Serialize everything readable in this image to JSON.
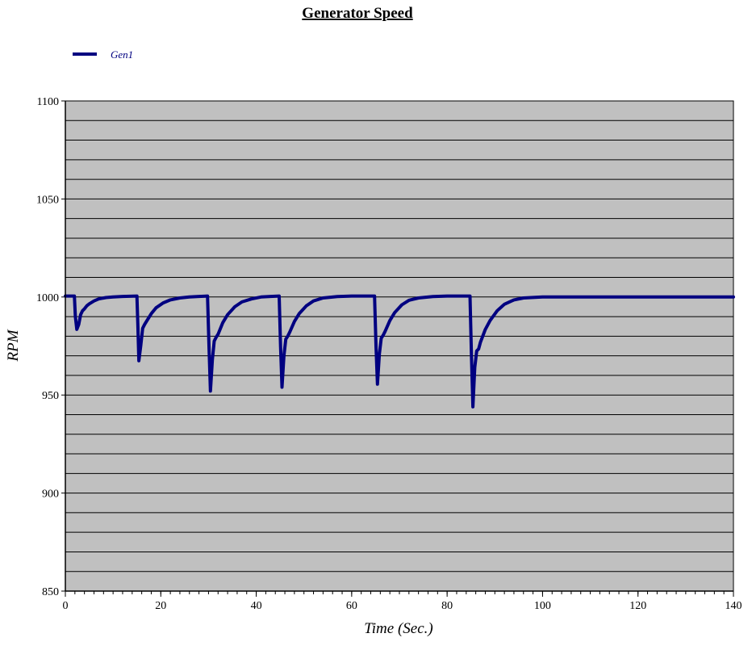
{
  "chart_data": {
    "type": "line",
    "title": "Generator Speed",
    "xlabel": "Time (Sec.)",
    "ylabel": "RPM",
    "xlim": [
      0,
      140
    ],
    "ylim": [
      850,
      1100
    ],
    "x_ticks": [
      0,
      20,
      40,
      60,
      80,
      100,
      120,
      140
    ],
    "y_ticks": [
      850,
      900,
      950,
      1000,
      1050,
      1100
    ],
    "x_minor_step": 2,
    "y_grid_step": 10,
    "grid": true,
    "plot_background": "#c0c0c0",
    "legend": {
      "position": "top-left"
    },
    "series": [
      {
        "name": "Gen1",
        "color": "#000080",
        "x": [
          0,
          1.9,
          2.1,
          2.4,
          2.8,
          3.2,
          3.6,
          4.0,
          4.5,
          5.0,
          6.0,
          7.0,
          8.5,
          10.0,
          12.0,
          15.0,
          15.2,
          15.4,
          15.8,
          16.2,
          16.6,
          17.0,
          18.0,
          19.0,
          20.5,
          22.0,
          24.0,
          26.0,
          28.0,
          29.8,
          30.1,
          30.4,
          30.8,
          31.2,
          31.6,
          32.0,
          33.0,
          34.0,
          35.5,
          37.0,
          39.0,
          41.0,
          43.0,
          44.8,
          45.1,
          45.4,
          45.8,
          46.2,
          46.6,
          47.0,
          48.0,
          49.0,
          50.5,
          52.0,
          54.0,
          57.0,
          60.0,
          64.8,
          65.1,
          65.4,
          65.8,
          66.2,
          66.6,
          67.0,
          68.0,
          69.0,
          70.5,
          72.0,
          74.0,
          77.0,
          80.0,
          84.8,
          85.1,
          85.4,
          85.8,
          86.2,
          86.6,
          87.0,
          88.0,
          89.0,
          90.5,
          92.0,
          94.0,
          96.0,
          100.0,
          140.0
        ],
        "values": [
          1000.5,
          1000.5,
          990,
          983.5,
          986,
          991,
          993,
          994,
          995.5,
          996.5,
          998,
          999,
          999.7,
          1000,
          1000.3,
          1000.5,
          985,
          967.5,
          975,
          984,
          986,
          987.5,
          991.5,
          994.5,
          997,
          998.5,
          999.5,
          1000,
          1000.3,
          1000.5,
          975,
          952,
          968,
          977.5,
          979.5,
          981,
          987,
          991,
          995,
          997.5,
          999,
          1000,
          1000.3,
          1000.5,
          975,
          954,
          970,
          978.5,
          980,
          982,
          987.5,
          991.5,
          995.5,
          998,
          999.5,
          1000.2,
          1000.5,
          1000.5,
          975,
          955.5,
          971,
          979,
          980.5,
          982.5,
          988,
          992,
          996,
          998.3,
          999.5,
          1000.2,
          1000.5,
          1000.5,
          970,
          944,
          964,
          972.5,
          973.5,
          977,
          983.5,
          988,
          993,
          996.3,
          998.5,
          999.5,
          1000,
          1000
        ]
      }
    ]
  }
}
